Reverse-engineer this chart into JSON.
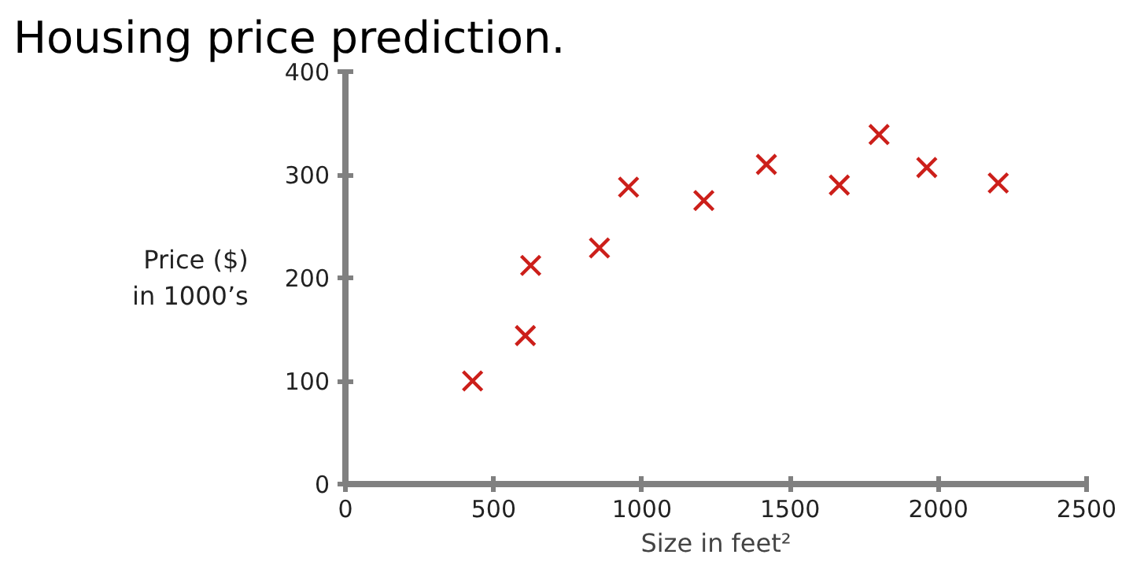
{
  "chart_data": {
    "type": "scatter",
    "title": "Housing price prediction.",
    "xlabel": "Size in feet²",
    "ylabel": "Price ($)\nin 1000’s",
    "x": [
      429,
      607,
      625,
      857,
      955,
      1209,
      1420,
      1666,
      1800,
      1961,
      2202
    ],
    "series": [
      {
        "color": "#cc1f1a",
        "values": [
          100,
          144,
          212,
          229,
          288,
          275,
          310,
          290,
          339,
          307,
          292
        ]
      }
    ],
    "marker": "cross",
    "xlim": [
      0,
      2500
    ],
    "ylim": [
      0,
      400
    ],
    "xticks": [
      0,
      500,
      1000,
      1500,
      2000,
      2500
    ],
    "yticks": [
      0,
      100,
      200,
      300,
      400
    ]
  }
}
